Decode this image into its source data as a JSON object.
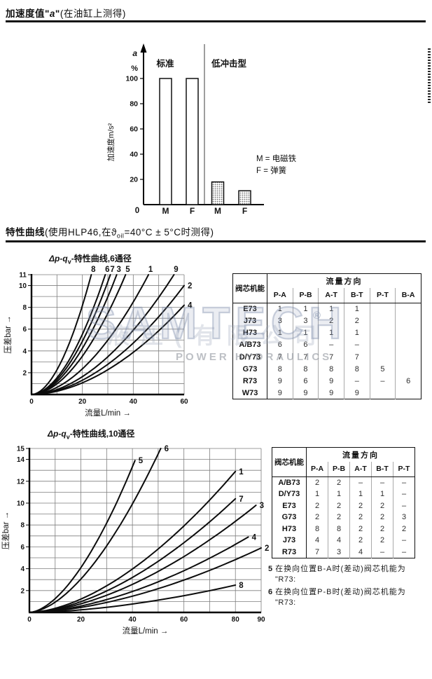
{
  "sections": {
    "accel": {
      "bold_pre": "加速度值\"",
      "em": "a",
      "bold_post": "\"",
      "normal": "(在油缸上测得)"
    },
    "curves": {
      "bold": "特性曲线",
      "normal_pre": "(使用HLP46,在ϑ",
      "sub": "oil",
      "normal_post": "=40°C ± 5°C时测得)"
    }
  },
  "watermark": {
    "brand": "SAMTECH",
    "reg": "®",
    "subtitle": "POWER HYDRAULICS",
    "cjk": "液压(有限公司"
  },
  "chart_data": [
    {
      "id": "acceleration-bar",
      "type": "bar",
      "y_top_label": "a",
      "y_unit": "%",
      "ylabel": "加速度m/s²",
      "ylim": [
        0,
        110
      ],
      "yticks": [
        20,
        40,
        60,
        80,
        100
      ],
      "origin_label": "0",
      "region_labels": [
        "标准",
        "低冲击型"
      ],
      "categories": [
        "M",
        "F",
        "M",
        "F"
      ],
      "groups": [
        "standard",
        "standard",
        "low_shock",
        "low_shock"
      ],
      "values": [
        100,
        100,
        18,
        11
      ],
      "legend": [
        "M = 电磁铁",
        "F = 弹簧"
      ]
    },
    {
      "id": "dp-qv-6",
      "type": "line",
      "title_pre": "Δp-q",
      "title_sub": "v",
      "title_post": "-特性曲线,6通径",
      "xlabel": "流量L/min →",
      "ylabel": "压差bar →",
      "xlim": [
        0,
        60
      ],
      "ylim": [
        0,
        11
      ],
      "xticks": [
        0,
        20,
        40,
        60
      ],
      "yticks": [
        2,
        4,
        6,
        8,
        10,
        11
      ],
      "grid_step": {
        "x": 10,
        "y": 1
      },
      "exponent": 1.85,
      "series": [
        {
          "name": "8",
          "end_x": 23.5,
          "end_y": 11,
          "label_at": "top"
        },
        {
          "name": "6",
          "end_x": 29,
          "end_y": 11,
          "label_at": "top"
        },
        {
          "name": "7",
          "end_x": 31,
          "end_y": 11,
          "label_at": "top"
        },
        {
          "name": "3",
          "end_x": 33.5,
          "end_y": 11,
          "label_at": "top"
        },
        {
          "name": "5",
          "end_x": 37,
          "end_y": 11,
          "label_at": "top"
        },
        {
          "name": "1",
          "end_x": 46,
          "end_y": 11,
          "label_at": "top"
        },
        {
          "name": "9",
          "end_x": 56,
          "end_y": 11,
          "label_at": "top"
        },
        {
          "name": "2",
          "end_x": 60,
          "end_y": 10,
          "label_at": "tip"
        },
        {
          "name": "4",
          "end_x": 60,
          "end_y": 8.2,
          "label_at": "tip"
        }
      ]
    },
    {
      "id": "dp-qv-10",
      "type": "line",
      "title_pre": "Δp-q",
      "title_sub": "v",
      "title_post": "-特性曲线,10通径",
      "xlabel": "流量L/min →",
      "ylabel": "压差bar →",
      "xlim": [
        0,
        90
      ],
      "ylim": [
        0,
        15
      ],
      "xticks": [
        0,
        20,
        40,
        60,
        80,
        90
      ],
      "yticks": [
        2,
        4,
        6,
        8,
        10,
        12,
        14,
        15
      ],
      "grid_step": {
        "x": 10,
        "y": 1
      },
      "exponent": 1.7,
      "series": [
        {
          "name": "5",
          "end_x": 41,
          "end_y": 13.9,
          "label_at": "tip"
        },
        {
          "name": "6",
          "end_x": 51,
          "end_y": 15,
          "label_at": "tip"
        },
        {
          "name": "1",
          "end_x": 80,
          "end_y": 12.9,
          "label_at": "tip"
        },
        {
          "name": "7",
          "end_x": 80,
          "end_y": 10.4,
          "label_at": "tip"
        },
        {
          "name": "3",
          "end_x": 88,
          "end_y": 9.8,
          "label_at": "tip"
        },
        {
          "name": "4",
          "end_x": 85,
          "end_y": 6.9,
          "label_at": "tip"
        },
        {
          "name": "2",
          "end_x": 90,
          "end_y": 5.9,
          "label_at": "tip"
        },
        {
          "name": "8",
          "end_x": 80,
          "end_y": 2.5,
          "label_at": "tip"
        }
      ]
    }
  ],
  "tables": [
    {
      "corner": "阀芯机能",
      "group_header": "流量方向",
      "columns": [
        "P-A",
        "P-B",
        "A-T",
        "B-T",
        "P-T",
        "B-A"
      ],
      "rows": [
        {
          "label": "E73",
          "values": [
            "1",
            "1",
            "1",
            "1",
            "",
            ""
          ]
        },
        {
          "label": "J73",
          "values": [
            "3",
            "3",
            "2",
            "2",
            "",
            ""
          ]
        },
        {
          "label": "H73",
          "values": [
            "1",
            "1",
            "1",
            "1",
            "",
            ""
          ]
        },
        {
          "label": "A/B73",
          "values": [
            "6",
            "6",
            "–",
            "–",
            "",
            ""
          ]
        },
        {
          "label": "D/Y73",
          "values": [
            "7",
            "7",
            "7",
            "7",
            "",
            ""
          ]
        },
        {
          "label": "G73",
          "values": [
            "8",
            "8",
            "8",
            "8",
            "5",
            ""
          ]
        },
        {
          "label": "R73",
          "values": [
            "9",
            "6",
            "9",
            "–",
            "–",
            "6"
          ]
        },
        {
          "label": "W73",
          "values": [
            "9",
            "9",
            "9",
            "9",
            "",
            ""
          ]
        }
      ]
    },
    {
      "corner": "阀芯机能",
      "group_header": "流量方向",
      "columns": [
        "P-A",
        "P-B",
        "A-T",
        "B-T",
        "P-T"
      ],
      "rows": [
        {
          "label": "A/B73",
          "values": [
            "2",
            "2",
            "–",
            "–",
            "–"
          ]
        },
        {
          "label": "D/Y73",
          "values": [
            "1",
            "1",
            "1",
            "1",
            "–"
          ]
        },
        {
          "label": "E73",
          "values": [
            "2",
            "2",
            "2",
            "2",
            "–"
          ]
        },
        {
          "label": "G73",
          "values": [
            "2",
            "2",
            "2",
            "2",
            "3"
          ]
        },
        {
          "label": "H73",
          "values": [
            "8",
            "8",
            "2",
            "2",
            "2"
          ]
        },
        {
          "label": "J73",
          "values": [
            "4",
            "4",
            "2",
            "2",
            "–"
          ]
        },
        {
          "label": "R73",
          "values": [
            "7",
            "3",
            "4",
            "–",
            "–"
          ]
        }
      ]
    }
  ],
  "footnotes": [
    {
      "num": "5",
      "line1": "在换向位置B-A时(差动)阀芯机能为",
      "line2": "\"R73:"
    },
    {
      "num": "6",
      "line1": "在换向位置P-B时(差动)阀芯机能为",
      "line2": "\"R73:"
    }
  ]
}
